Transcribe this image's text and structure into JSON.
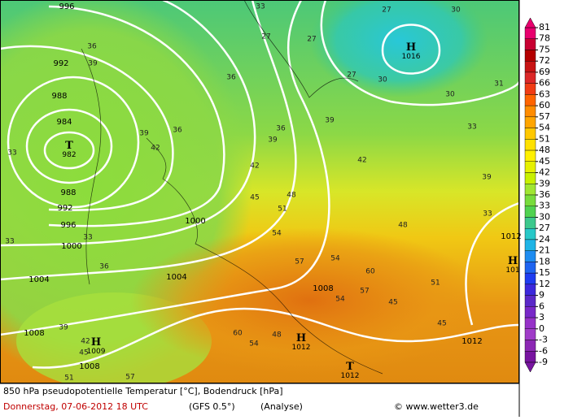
{
  "map": {
    "isobar_labels": [
      "996",
      "992",
      "988",
      "984",
      "988",
      "992",
      "996",
      "1000",
      "1004",
      "1008",
      "1008",
      "1000",
      "1004",
      "1008",
      "1012",
      "1012"
    ],
    "centers": [
      {
        "letter": "T",
        "value": "982"
      },
      {
        "letter": "H",
        "value": "1016"
      },
      {
        "letter": "H",
        "value": "1009"
      },
      {
        "letter": "H",
        "value": "1012"
      },
      {
        "letter": "T",
        "value": "1012"
      },
      {
        "letter": "H",
        "value": "101"
      }
    ],
    "temperature_labels": [
      "33",
      "27",
      "27",
      "27",
      "30",
      "27",
      "30",
      "30",
      "31",
      "33",
      "36",
      "36",
      "36",
      "39",
      "39",
      "42",
      "42",
      "45",
      "48",
      "51",
      "54",
      "57",
      "60",
      "54",
      "48",
      "51",
      "45",
      "54",
      "57",
      "48",
      "60",
      "54",
      "39",
      "42",
      "45",
      "51",
      "57",
      "33",
      "33",
      "39",
      "42",
      "36",
      "33",
      "36",
      "39",
      "33",
      "39",
      "45"
    ]
  },
  "legend": {
    "ticks": [
      81,
      78,
      75,
      72,
      69,
      66,
      63,
      60,
      57,
      54,
      51,
      48,
      45,
      42,
      39,
      36,
      33,
      30,
      27,
      24,
      21,
      18,
      15,
      12,
      9,
      6,
      3,
      0,
      -3,
      -6,
      -9
    ],
    "colors": [
      "#e8006e",
      "#c80032",
      "#b40000",
      "#c81414",
      "#dc2828",
      "#f03c14",
      "#ff6400",
      "#ff8c00",
      "#ffa500",
      "#ffc800",
      "#ffe100",
      "#fff000",
      "#e6f000",
      "#c8f000",
      "#a0e632",
      "#78dc3c",
      "#50d250",
      "#3cc88c",
      "#28c8c8",
      "#1eb4e6",
      "#1e8cf0",
      "#1e64f0",
      "#1e3cf0",
      "#3c28dc",
      "#5a28c8",
      "#7828c8",
      "#9632c8",
      "#a03cc8",
      "#8c28b4",
      "#7814a0"
    ]
  },
  "footer": {
    "line1": "850 hPa pseudopotentielle Temperatur [°C], Bodendruck [hPa]",
    "date": "Donnerstag, 07-06-2012   18 UTC",
    "model": "(GFS 0.5°)",
    "run": "(Analyse)",
    "copyright": "© www.wetter3.de"
  }
}
